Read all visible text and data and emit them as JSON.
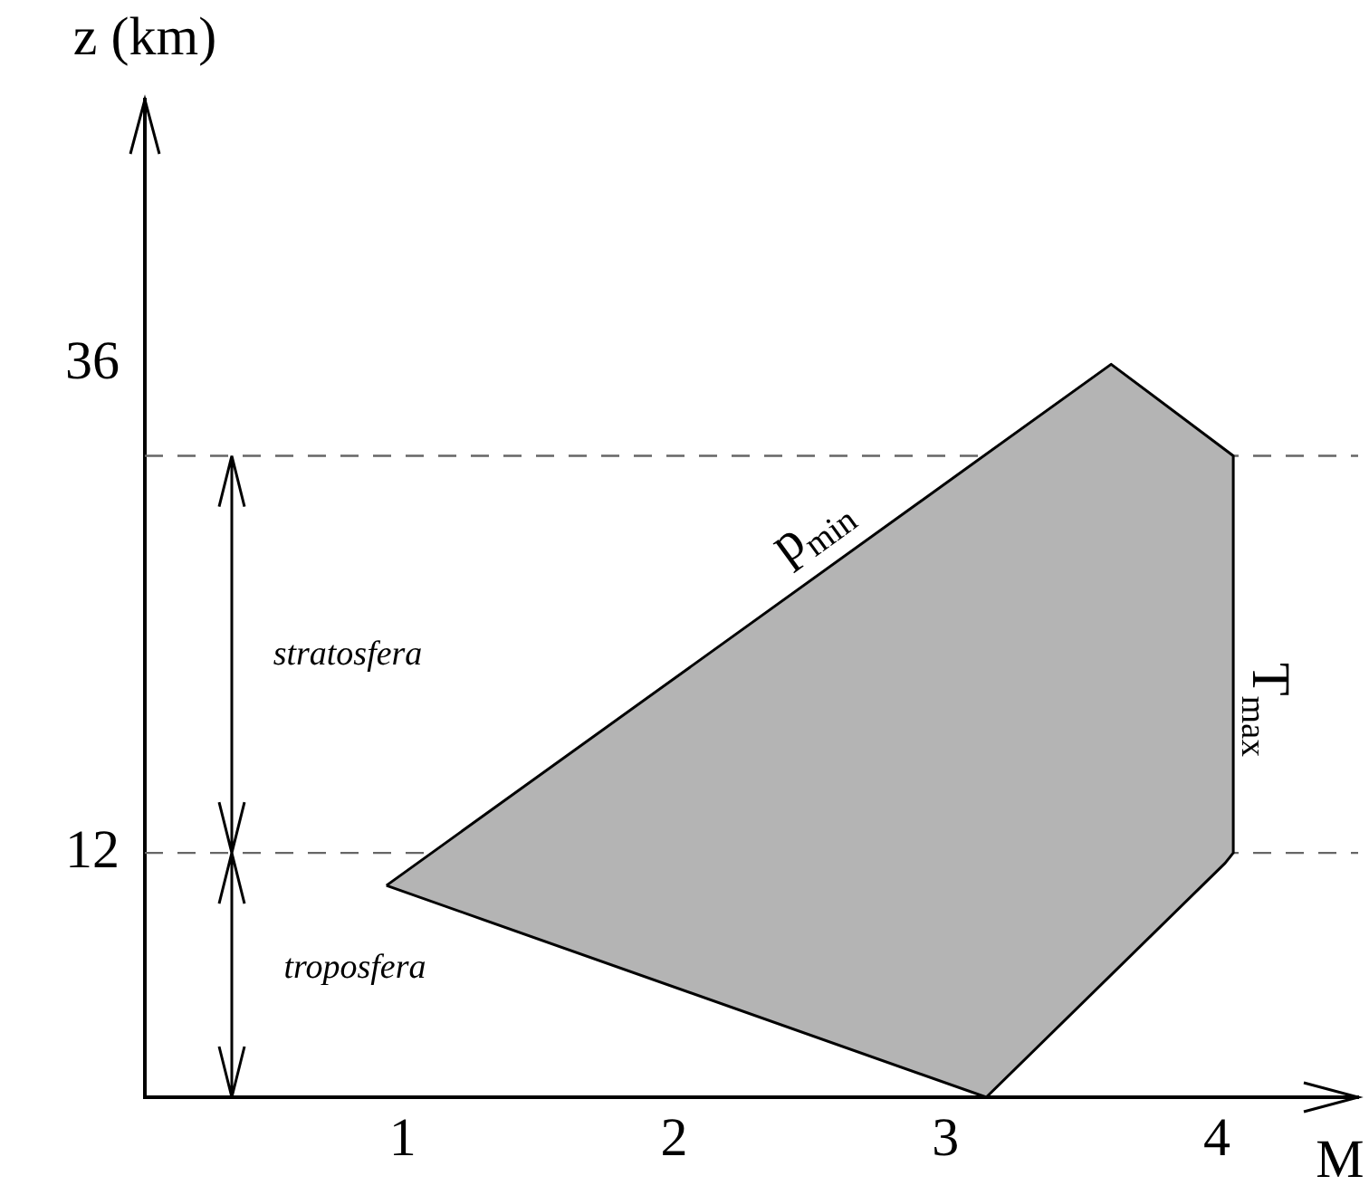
{
  "chart_data": {
    "type": "area",
    "xlabel": "M",
    "ylabel": "z (km)",
    "series": [
      {
        "color": "#b4b4b4",
        "x": [
          0.94,
          3.61,
          4.06,
          4.06,
          4.03,
          3.15,
          0.94
        ],
        "values": [
          10.4,
          36,
          31.5,
          12,
          11.5,
          0,
          10.4
        ]
      }
    ],
    "xlim": [
      0.05,
      4.52
    ],
    "ylim": [
      0,
      49
    ],
    "xticks": [
      1,
      2,
      3,
      4
    ],
    "yticks": [
      12,
      36
    ],
    "grid": false,
    "legend": false,
    "ref_lines": [
      {
        "axis": "y",
        "value": 12,
        "color": "#666666",
        "line_style": "dashed"
      },
      {
        "axis": "y",
        "value": 31.5,
        "color": "#666666",
        "line_style": "dashed"
      }
    ],
    "annotations": [
      "p$_{min}$",
      "T$_{max}$",
      "stratosfera",
      "troposfera"
    ]
  }
}
